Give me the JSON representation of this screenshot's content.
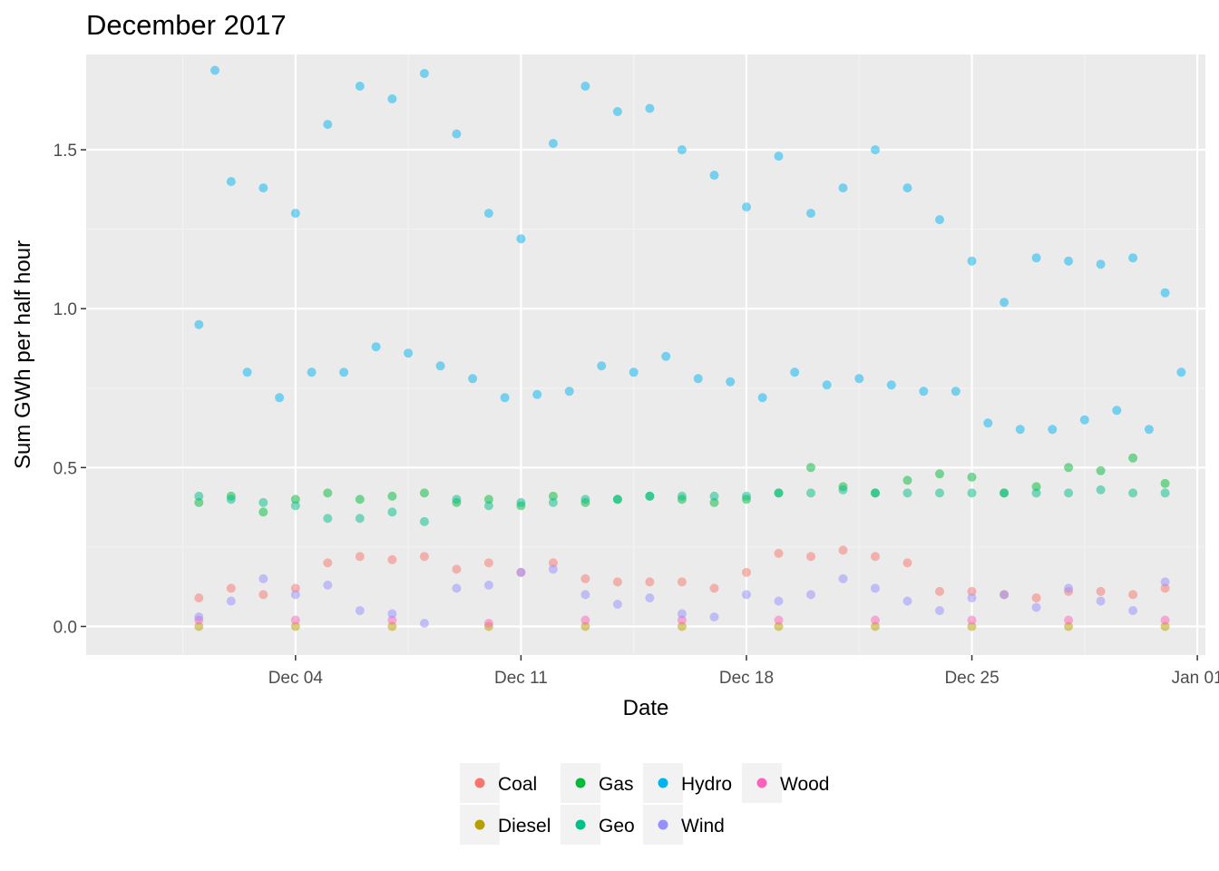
{
  "chart_data": {
    "type": "scatter",
    "title": "December 2017",
    "xlabel": "Date",
    "ylabel": "Sum GWh per half hour",
    "x_range": [
      "2017-11-27T12:00",
      "2018-01-01T06:00"
    ],
    "ylim": [
      -0.09,
      1.8
    ],
    "x_ticks": [
      {
        "date": "2017-12-04",
        "label": "Dec 04"
      },
      {
        "date": "2017-12-11",
        "label": "Dec 11"
      },
      {
        "date": "2017-12-18",
        "label": "Dec 18"
      },
      {
        "date": "2017-12-25",
        "label": "Dec 25"
      },
      {
        "date": "2018-01-01",
        "label": "Jan 01"
      }
    ],
    "y_ticks": [
      0.0,
      0.5,
      1.0,
      1.5
    ],
    "y_tick_labels": [
      "0.0",
      "0.5",
      "1.0",
      "1.5"
    ],
    "grid": true,
    "legend_position": "bottom",
    "series": [
      {
        "name": "Coal",
        "color": "#F8766D",
        "points": [
          [
            "2017-12-01",
            0.09
          ],
          [
            "2017-12-02",
            0.12
          ],
          [
            "2017-12-03",
            0.1
          ],
          [
            "2017-12-04",
            0.12
          ],
          [
            "2017-12-05",
            0.2
          ],
          [
            "2017-12-06",
            0.22
          ],
          [
            "2017-12-07",
            0.21
          ],
          [
            "2017-12-08",
            0.22
          ],
          [
            "2017-12-09",
            0.18
          ],
          [
            "2017-12-10",
            0.2
          ],
          [
            "2017-12-11",
            0.17
          ],
          [
            "2017-12-12",
            0.2
          ],
          [
            "2017-12-13",
            0.15
          ],
          [
            "2017-12-14",
            0.14
          ],
          [
            "2017-12-15",
            0.14
          ],
          [
            "2017-12-16",
            0.14
          ],
          [
            "2017-12-17",
            0.12
          ],
          [
            "2017-12-18",
            0.17
          ],
          [
            "2017-12-19",
            0.23
          ],
          [
            "2017-12-20",
            0.22
          ],
          [
            "2017-12-21",
            0.24
          ],
          [
            "2017-12-22",
            0.22
          ],
          [
            "2017-12-23",
            0.2
          ],
          [
            "2017-12-24",
            0.11
          ],
          [
            "2017-12-25",
            0.11
          ],
          [
            "2017-12-26",
            0.1
          ],
          [
            "2017-12-27",
            0.09
          ],
          [
            "2017-12-28",
            0.11
          ],
          [
            "2017-12-29",
            0.11
          ],
          [
            "2017-12-30",
            0.1
          ],
          [
            "2017-12-31",
            0.12
          ]
        ]
      },
      {
        "name": "Diesel",
        "color": "#B79F00",
        "points": [
          [
            "2017-12-01",
            0.0
          ],
          [
            "2017-12-04",
            0.0
          ],
          [
            "2017-12-07",
            0.0
          ],
          [
            "2017-12-10",
            0.0
          ],
          [
            "2017-12-13",
            0.0
          ],
          [
            "2017-12-16",
            0.0
          ],
          [
            "2017-12-19",
            0.0
          ],
          [
            "2017-12-22",
            0.0
          ],
          [
            "2017-12-25",
            0.0
          ],
          [
            "2017-12-28",
            0.0
          ],
          [
            "2017-12-31",
            0.0
          ]
        ]
      },
      {
        "name": "Gas",
        "color": "#00BA38",
        "points": [
          [
            "2017-12-01",
            0.39
          ],
          [
            "2017-12-02",
            0.41
          ],
          [
            "2017-12-03",
            0.36
          ],
          [
            "2017-12-04",
            0.4
          ],
          [
            "2017-12-05",
            0.42
          ],
          [
            "2017-12-06",
            0.4
          ],
          [
            "2017-12-07",
            0.41
          ],
          [
            "2017-12-08",
            0.42
          ],
          [
            "2017-12-09",
            0.39
          ],
          [
            "2017-12-10",
            0.4
          ],
          [
            "2017-12-11",
            0.38
          ],
          [
            "2017-12-12",
            0.41
          ],
          [
            "2017-12-13",
            0.39
          ],
          [
            "2017-12-14",
            0.4
          ],
          [
            "2017-12-15",
            0.41
          ],
          [
            "2017-12-16",
            0.4
          ],
          [
            "2017-12-17",
            0.39
          ],
          [
            "2017-12-18",
            0.4
          ],
          [
            "2017-12-19",
            0.42
          ],
          [
            "2017-12-20",
            0.5
          ],
          [
            "2017-12-21",
            0.44
          ],
          [
            "2017-12-22",
            0.42
          ],
          [
            "2017-12-23",
            0.46
          ],
          [
            "2017-12-24",
            0.48
          ],
          [
            "2017-12-25",
            0.47
          ],
          [
            "2017-12-26",
            0.42
          ],
          [
            "2017-12-27",
            0.44
          ],
          [
            "2017-12-28",
            0.5
          ],
          [
            "2017-12-29",
            0.49
          ],
          [
            "2017-12-30",
            0.53
          ],
          [
            "2017-12-31",
            0.45
          ]
        ]
      },
      {
        "name": "Geo",
        "color": "#00C08B",
        "points": [
          [
            "2017-12-01",
            0.41
          ],
          [
            "2017-12-02",
            0.4
          ],
          [
            "2017-12-03",
            0.39
          ],
          [
            "2017-12-04",
            0.38
          ],
          [
            "2017-12-05",
            0.34
          ],
          [
            "2017-12-06",
            0.34
          ],
          [
            "2017-12-07",
            0.36
          ],
          [
            "2017-12-08",
            0.33
          ],
          [
            "2017-12-09",
            0.4
          ],
          [
            "2017-12-10",
            0.38
          ],
          [
            "2017-12-11",
            0.39
          ],
          [
            "2017-12-12",
            0.39
          ],
          [
            "2017-12-13",
            0.4
          ],
          [
            "2017-12-14",
            0.4
          ],
          [
            "2017-12-15",
            0.41
          ],
          [
            "2017-12-16",
            0.41
          ],
          [
            "2017-12-17",
            0.41
          ],
          [
            "2017-12-18",
            0.41
          ],
          [
            "2017-12-19",
            0.42
          ],
          [
            "2017-12-20",
            0.42
          ],
          [
            "2017-12-21",
            0.43
          ],
          [
            "2017-12-22",
            0.42
          ],
          [
            "2017-12-23",
            0.42
          ],
          [
            "2017-12-24",
            0.42
          ],
          [
            "2017-12-25",
            0.42
          ],
          [
            "2017-12-26",
            0.42
          ],
          [
            "2017-12-27",
            0.42
          ],
          [
            "2017-12-28",
            0.42
          ],
          [
            "2017-12-29",
            0.43
          ],
          [
            "2017-12-30",
            0.42
          ],
          [
            "2017-12-31",
            0.42
          ]
        ]
      },
      {
        "name": "Hydro",
        "color": "#00B4F0",
        "points": [
          [
            "2017-12-01",
            0.95
          ],
          [
            "2017-12-01T12:00",
            1.75
          ],
          [
            "2017-12-02",
            1.4
          ],
          [
            "2017-12-02T12:00",
            0.8
          ],
          [
            "2017-12-03",
            1.38
          ],
          [
            "2017-12-03T12:00",
            0.72
          ],
          [
            "2017-12-04",
            1.3
          ],
          [
            "2017-12-04T12:00",
            0.8
          ],
          [
            "2017-12-05",
            1.58
          ],
          [
            "2017-12-05T12:00",
            0.8
          ],
          [
            "2017-12-06",
            1.7
          ],
          [
            "2017-12-06T12:00",
            0.88
          ],
          [
            "2017-12-07",
            1.66
          ],
          [
            "2017-12-07T12:00",
            0.86
          ],
          [
            "2017-12-08",
            1.74
          ],
          [
            "2017-12-08T12:00",
            0.82
          ],
          [
            "2017-12-09",
            1.55
          ],
          [
            "2017-12-09T12:00",
            0.78
          ],
          [
            "2017-12-10",
            1.3
          ],
          [
            "2017-12-10T12:00",
            0.72
          ],
          [
            "2017-12-11",
            1.22
          ],
          [
            "2017-12-11T12:00",
            0.73
          ],
          [
            "2017-12-12",
            1.52
          ],
          [
            "2017-12-12T12:00",
            0.74
          ],
          [
            "2017-12-13",
            1.7
          ],
          [
            "2017-12-13T12:00",
            0.82
          ],
          [
            "2017-12-14",
            1.62
          ],
          [
            "2017-12-14T12:00",
            0.8
          ],
          [
            "2017-12-15",
            1.63
          ],
          [
            "2017-12-15T12:00",
            0.85
          ],
          [
            "2017-12-16",
            1.5
          ],
          [
            "2017-12-16T12:00",
            0.78
          ],
          [
            "2017-12-17",
            1.42
          ],
          [
            "2017-12-17T12:00",
            0.77
          ],
          [
            "2017-12-18",
            1.32
          ],
          [
            "2017-12-18T12:00",
            0.72
          ],
          [
            "2017-12-19",
            1.48
          ],
          [
            "2017-12-19T12:00",
            0.8
          ],
          [
            "2017-12-20",
            1.3
          ],
          [
            "2017-12-20T12:00",
            0.76
          ],
          [
            "2017-12-21",
            1.38
          ],
          [
            "2017-12-21T12:00",
            0.78
          ],
          [
            "2017-12-22",
            1.5
          ],
          [
            "2017-12-22T12:00",
            0.76
          ],
          [
            "2017-12-23",
            1.38
          ],
          [
            "2017-12-23T12:00",
            0.74
          ],
          [
            "2017-12-24",
            1.28
          ],
          [
            "2017-12-24T12:00",
            0.74
          ],
          [
            "2017-12-25",
            1.15
          ],
          [
            "2017-12-25T12:00",
            0.64
          ],
          [
            "2017-12-26",
            1.02
          ],
          [
            "2017-12-26T12:00",
            0.62
          ],
          [
            "2017-12-27",
            1.16
          ],
          [
            "2017-12-27T12:00",
            0.62
          ],
          [
            "2017-12-28",
            1.15
          ],
          [
            "2017-12-28T12:00",
            0.65
          ],
          [
            "2017-12-29",
            1.14
          ],
          [
            "2017-12-29T12:00",
            0.68
          ],
          [
            "2017-12-30",
            1.16
          ],
          [
            "2017-12-30T12:00",
            0.62
          ],
          [
            "2017-12-31",
            1.05
          ],
          [
            "2017-12-31T12:00",
            0.8
          ]
        ]
      },
      {
        "name": "Wind",
        "color": "#9590FF",
        "points": [
          [
            "2017-12-01",
            0.03
          ],
          [
            "2017-12-02",
            0.08
          ],
          [
            "2017-12-03",
            0.15
          ],
          [
            "2017-12-04",
            0.1
          ],
          [
            "2017-12-05",
            0.13
          ],
          [
            "2017-12-06",
            0.05
          ],
          [
            "2017-12-07",
            0.04
          ],
          [
            "2017-12-08",
            0.01
          ],
          [
            "2017-12-09",
            0.12
          ],
          [
            "2017-12-10",
            0.13
          ],
          [
            "2017-12-11",
            0.17
          ],
          [
            "2017-12-12",
            0.18
          ],
          [
            "2017-12-13",
            0.1
          ],
          [
            "2017-12-14",
            0.07
          ],
          [
            "2017-12-15",
            0.09
          ],
          [
            "2017-12-16",
            0.04
          ],
          [
            "2017-12-17",
            0.03
          ],
          [
            "2017-12-18",
            0.1
          ],
          [
            "2017-12-19",
            0.08
          ],
          [
            "2017-12-20",
            0.1
          ],
          [
            "2017-12-21",
            0.15
          ],
          [
            "2017-12-22",
            0.12
          ],
          [
            "2017-12-23",
            0.08
          ],
          [
            "2017-12-24",
            0.05
          ],
          [
            "2017-12-25",
            0.09
          ],
          [
            "2017-12-26",
            0.1
          ],
          [
            "2017-12-27",
            0.06
          ],
          [
            "2017-12-28",
            0.12
          ],
          [
            "2017-12-29",
            0.08
          ],
          [
            "2017-12-30",
            0.05
          ],
          [
            "2017-12-31",
            0.14
          ]
        ]
      },
      {
        "name": "Wood",
        "color": "#FF62BC",
        "points": [
          [
            "2017-12-01",
            0.02
          ],
          [
            "2017-12-04",
            0.02
          ],
          [
            "2017-12-07",
            0.02
          ],
          [
            "2017-12-10",
            0.01
          ],
          [
            "2017-12-13",
            0.02
          ],
          [
            "2017-12-16",
            0.02
          ],
          [
            "2017-12-19",
            0.02
          ],
          [
            "2017-12-22",
            0.02
          ],
          [
            "2017-12-25",
            0.02
          ],
          [
            "2017-12-28",
            0.02
          ],
          [
            "2017-12-31",
            0.02
          ]
        ]
      }
    ]
  }
}
